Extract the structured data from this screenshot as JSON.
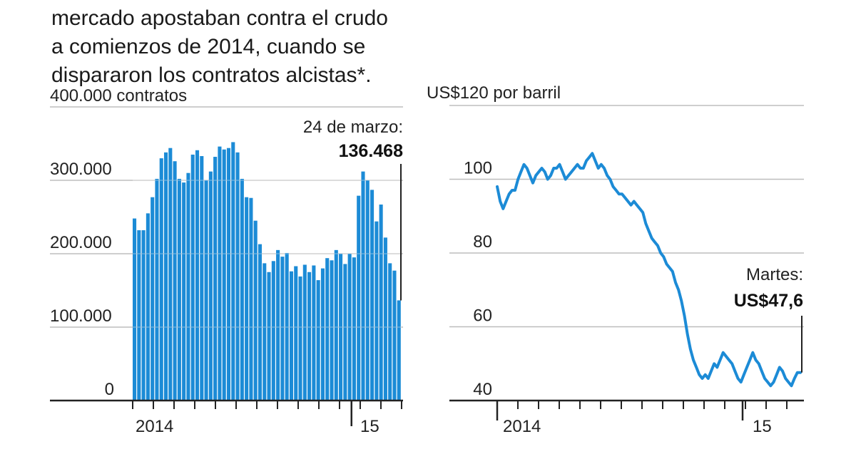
{
  "intro": {
    "lines": [
      "mercado apostaban contra el crudo",
      "a comienzos de 2014, cuando se",
      "dispararon los contratos alcistas"
    ],
    "asterisk": "*."
  },
  "chart_data": [
    {
      "type": "bar",
      "ylabel": "400.000 contratos",
      "ylim": [
        0,
        400000
      ],
      "yticks": [
        {
          "value": 300000,
          "label": "300.000"
        },
        {
          "value": 200000,
          "label": "200.000"
        },
        {
          "value": 100000,
          "label": "100.000"
        },
        {
          "value": 0,
          "label": "0"
        }
      ],
      "xtick_labels": [
        {
          "label": "2014",
          "index": 3
        },
        {
          "label": "15",
          "index": 52
        }
      ],
      "values": [
        248000,
        232000,
        232000,
        255000,
        277000,
        302000,
        330000,
        338000,
        344000,
        326000,
        302000,
        297000,
        310000,
        335000,
        341000,
        333000,
        300000,
        312000,
        332000,
        346000,
        342000,
        344000,
        352000,
        338000,
        302000,
        277000,
        276000,
        245000,
        213000,
        187000,
        175000,
        190000,
        205000,
        196000,
        201000,
        176000,
        183000,
        169000,
        185000,
        175000,
        184000,
        164000,
        180000,
        194000,
        191000,
        205000,
        200000,
        186000,
        200000,
        195000,
        279000,
        312000,
        300000,
        287000,
        244000,
        267000,
        222000,
        187000,
        177000,
        136468
      ],
      "annotation": {
        "label": "24 de marzo:",
        "value_label": "136.468"
      }
    },
    {
      "type": "line",
      "ylabel": "US$120 por barril",
      "ylim": [
        40,
        120
      ],
      "yticks": [
        {
          "value": 100,
          "label": "100"
        },
        {
          "value": 80,
          "label": "80"
        },
        {
          "value": 60,
          "label": "60"
        },
        {
          "value": 40,
          "label": "40"
        }
      ],
      "xtick_labels": [
        {
          "label": "2014",
          "x": 0
        },
        {
          "label": "15",
          "x": 252
        }
      ],
      "series": [
        {
          "x": [
            0,
            3,
            6,
            9,
            12,
            15,
            18,
            21,
            24,
            27,
            30,
            33,
            36,
            39,
            42,
            45,
            48,
            51,
            54,
            57,
            60,
            63,
            66,
            69,
            72,
            75,
            78,
            81,
            84,
            87,
            90,
            93,
            96,
            99,
            102,
            105,
            108,
            111,
            114,
            117,
            120,
            123,
            126,
            129,
            132,
            135,
            138,
            141,
            144,
            147,
            150,
            153,
            156,
            159,
            162,
            165,
            168,
            171,
            174,
            177,
            180,
            183,
            186,
            189,
            192,
            195,
            198,
            201,
            204,
            207,
            210,
            213,
            216,
            219,
            222,
            225,
            228,
            231,
            234,
            237,
            240,
            243,
            246,
            249,
            252,
            255,
            258,
            261,
            264,
            267,
            270,
            273,
            276,
            279,
            282,
            285,
            288,
            291,
            294,
            297,
            300,
            303,
            306
          ],
          "values": [
            98,
            94,
            92,
            94,
            96,
            97,
            97,
            100,
            102,
            104,
            103,
            101,
            99,
            101,
            102,
            103,
            102,
            100,
            101,
            103,
            103,
            104,
            102,
            100,
            101,
            102,
            103,
            104,
            103,
            103,
            105,
            106,
            107,
            105,
            103,
            104,
            103,
            101,
            100,
            98,
            97,
            96,
            96,
            95,
            94,
            93,
            94,
            93,
            92,
            91,
            88,
            86,
            84,
            83,
            82,
            80,
            79,
            77,
            76,
            75,
            72,
            70,
            67,
            63,
            58,
            54,
            51,
            49,
            47,
            46,
            47,
            46,
            48,
            50,
            49,
            51,
            53,
            52,
            51,
            50,
            48,
            46,
            45,
            47,
            49,
            51,
            53,
            51,
            50,
            48,
            46,
            45,
            44,
            45,
            47,
            49,
            48,
            46,
            45,
            44,
            46,
            47.6,
            47.6
          ]
        }
      ],
      "annotation": {
        "label": "Martes:",
        "value_label": "US$47,6"
      }
    }
  ]
}
